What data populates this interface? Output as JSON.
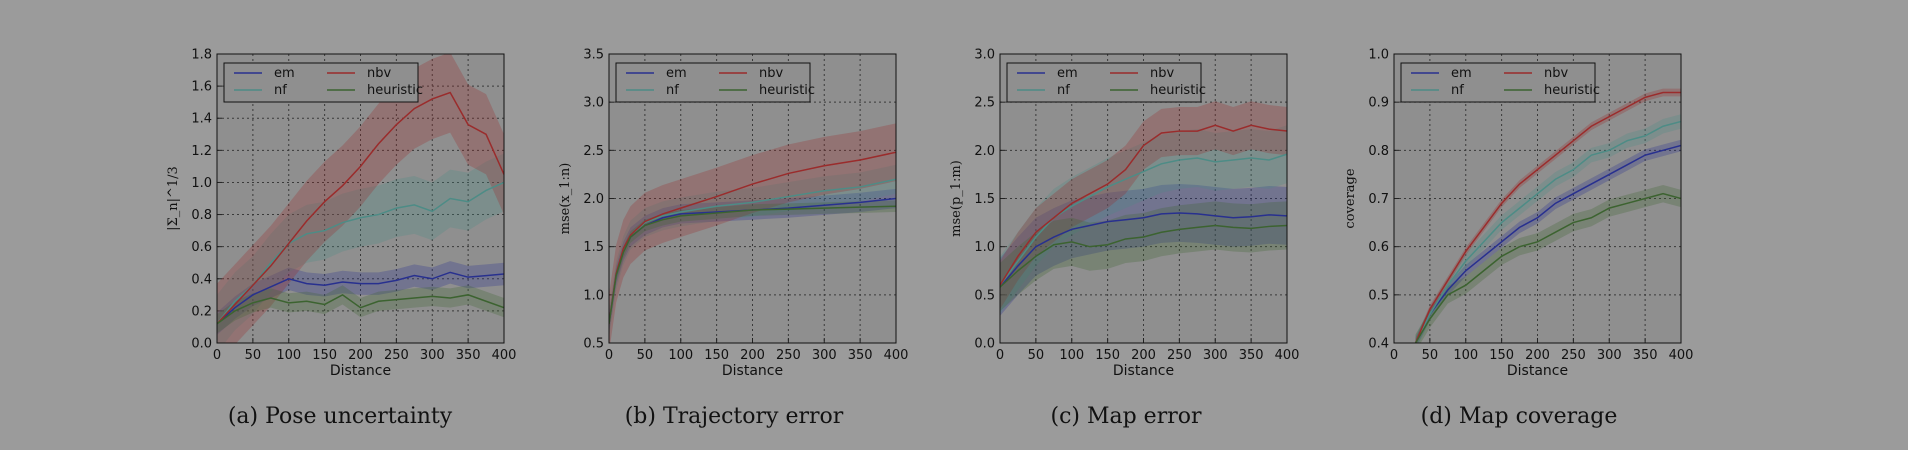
{
  "colors": {
    "em": "#28308f",
    "nf": "#4d8c86",
    "nbv": "#9a2c2c",
    "heuristic": "#3c6330",
    "axes_bg": "#8f8f8f",
    "grid": "#3a3a3a"
  },
  "chart_data": [
    {
      "type": "line",
      "caption": "(a) Pose uncertainty",
      "xlabel": "Distance",
      "ylabel": "|Σ_n|^1/3",
      "xlim": [
        0,
        400
      ],
      "ylim": [
        0,
        1.8
      ],
      "xticks": [
        "0",
        "50",
        "100",
        "150",
        "200",
        "250",
        "300",
        "350",
        "400"
      ],
      "yticks": [
        "0.0",
        "0.2",
        "0.4",
        "0.6",
        "0.8",
        "1.0",
        "1.2",
        "1.4",
        "1.6",
        "1.8"
      ],
      "legend_location": "top-left",
      "legend": [
        "em",
        "nf",
        "nbv",
        "heuristic"
      ],
      "x": [
        0,
        25,
        50,
        75,
        100,
        125,
        150,
        175,
        200,
        225,
        250,
        275,
        300,
        325,
        350,
        375,
        400
      ],
      "series": [
        {
          "name": "em",
          "values": [
            0.12,
            0.22,
            0.3,
            0.35,
            0.4,
            0.37,
            0.36,
            0.38,
            0.37,
            0.37,
            0.39,
            0.42,
            0.4,
            0.44,
            0.41,
            0.42,
            0.43
          ],
          "band": 0.07
        },
        {
          "name": "nf",
          "values": [
            0.12,
            0.26,
            0.36,
            0.5,
            0.62,
            0.68,
            0.7,
            0.75,
            0.78,
            0.8,
            0.84,
            0.86,
            0.82,
            0.9,
            0.88,
            0.95,
            1.0
          ],
          "band": 0.18
        },
        {
          "name": "nbv",
          "values": [
            0.12,
            0.24,
            0.36,
            0.48,
            0.62,
            0.76,
            0.88,
            0.98,
            1.1,
            1.24,
            1.36,
            1.46,
            1.52,
            1.56,
            1.36,
            1.3,
            1.05
          ],
          "band": 0.25
        },
        {
          "name": "heuristic",
          "values": [
            0.12,
            0.2,
            0.25,
            0.28,
            0.25,
            0.26,
            0.24,
            0.3,
            0.22,
            0.26,
            0.27,
            0.28,
            0.29,
            0.28,
            0.3,
            0.26,
            0.22
          ],
          "band": 0.06
        }
      ]
    },
    {
      "type": "line",
      "caption": "(b) Trajectory error",
      "xlabel": "Distance",
      "ylabel": "mse(x_1:n)",
      "xlim": [
        0,
        400
      ],
      "ylim": [
        0.5,
        3.5
      ],
      "xticks": [
        "0",
        "50",
        "100",
        "150",
        "200",
        "250",
        "300",
        "350",
        "400"
      ],
      "yticks": [
        "0.5",
        "1.0",
        "1.5",
        "2.0",
        "2.5",
        "3.0",
        "3.5"
      ],
      "legend_location": "top-left",
      "legend": [
        "em",
        "nf",
        "nbv",
        "heuristic"
      ],
      "x": [
        0,
        10,
        20,
        30,
        50,
        75,
        100,
        150,
        200,
        250,
        300,
        350,
        400
      ],
      "series": [
        {
          "name": "em",
          "values": [
            0.7,
            1.2,
            1.45,
            1.6,
            1.72,
            1.8,
            1.84,
            1.86,
            1.88,
            1.9,
            1.93,
            1.96,
            2.0
          ],
          "band": 0.1
        },
        {
          "name": "nf",
          "values": [
            0.7,
            1.2,
            1.46,
            1.62,
            1.75,
            1.82,
            1.86,
            1.92,
            1.96,
            2.02,
            2.08,
            2.12,
            2.2
          ],
          "band": 0.15
        },
        {
          "name": "nbv",
          "values": [
            0.7,
            1.22,
            1.48,
            1.62,
            1.76,
            1.84,
            1.9,
            2.02,
            2.15,
            2.26,
            2.34,
            2.4,
            2.48
          ],
          "band": 0.3
        },
        {
          "name": "heuristic",
          "values": [
            0.7,
            1.2,
            1.44,
            1.6,
            1.72,
            1.78,
            1.82,
            1.85,
            1.88,
            1.89,
            1.9,
            1.91,
            1.92
          ],
          "band": 0.06
        }
      ]
    },
    {
      "type": "line",
      "caption": "(c) Map error",
      "xlabel": "Distance",
      "ylabel": "mse(p_1:m)",
      "xlim": [
        0,
        400
      ],
      "ylim": [
        0.0,
        3.0
      ],
      "xticks": [
        "0",
        "50",
        "100",
        "150",
        "200",
        "250",
        "300",
        "350",
        "400"
      ],
      "yticks": [
        "0.0",
        "0.5",
        "1.0",
        "1.5",
        "2.0",
        "2.5",
        "3.0"
      ],
      "legend_location": "top-left",
      "legend": [
        "em",
        "nf",
        "nbv",
        "heuristic"
      ],
      "x": [
        0,
        25,
        50,
        75,
        100,
        125,
        150,
        175,
        200,
        225,
        250,
        275,
        300,
        325,
        350,
        375,
        400
      ],
      "series": [
        {
          "name": "em",
          "values": [
            0.58,
            0.8,
            1.0,
            1.1,
            1.18,
            1.22,
            1.26,
            1.28,
            1.3,
            1.34,
            1.35,
            1.34,
            1.32,
            1.3,
            1.31,
            1.33,
            1.32
          ],
          "band": 0.3
        },
        {
          "name": "nf",
          "values": [
            0.6,
            0.85,
            1.1,
            1.3,
            1.42,
            1.52,
            1.62,
            1.7,
            1.78,
            1.86,
            1.9,
            1.92,
            1.88,
            1.9,
            1.92,
            1.9,
            1.96
          ],
          "band": 0.3
        },
        {
          "name": "nbv",
          "values": [
            0.6,
            0.9,
            1.15,
            1.3,
            1.45,
            1.55,
            1.65,
            1.8,
            2.05,
            2.18,
            2.2,
            2.2,
            2.26,
            2.2,
            2.26,
            2.22,
            2.2
          ],
          "band": 0.25
        },
        {
          "name": "heuristic",
          "values": [
            0.58,
            0.75,
            0.9,
            1.02,
            1.05,
            1.0,
            1.02,
            1.08,
            1.1,
            1.15,
            1.18,
            1.2,
            1.22,
            1.2,
            1.19,
            1.21,
            1.22
          ],
          "band": 0.25
        }
      ]
    },
    {
      "type": "line",
      "caption": "(d) Map coverage",
      "xlabel": "Distance",
      "ylabel": "coverage",
      "xlim": [
        0,
        400
      ],
      "ylim": [
        0.4,
        1.0
      ],
      "xticks": [
        "0",
        "50",
        "100",
        "150",
        "200",
        "250",
        "300",
        "350",
        "400"
      ],
      "yticks": [
        "0.4",
        "0.5",
        "0.6",
        "0.7",
        "0.8",
        "0.9",
        "1.0"
      ],
      "legend_location": "top-left",
      "legend": [
        "em",
        "nf",
        "nbv",
        "heuristic"
      ],
      "x": [
        30,
        50,
        75,
        100,
        125,
        150,
        175,
        200,
        225,
        250,
        275,
        300,
        325,
        350,
        375,
        400
      ],
      "series": [
        {
          "name": "em",
          "values": [
            0.4,
            0.46,
            0.51,
            0.55,
            0.58,
            0.61,
            0.64,
            0.66,
            0.69,
            0.71,
            0.73,
            0.75,
            0.77,
            0.79,
            0.8,
            0.81
          ],
          "band": 0.012
        },
        {
          "name": "nf",
          "values": [
            0.4,
            0.46,
            0.52,
            0.57,
            0.61,
            0.65,
            0.68,
            0.71,
            0.74,
            0.76,
            0.79,
            0.8,
            0.82,
            0.83,
            0.85,
            0.86
          ],
          "band": 0.015
        },
        {
          "name": "nbv",
          "values": [
            0.4,
            0.47,
            0.53,
            0.59,
            0.64,
            0.69,
            0.73,
            0.76,
            0.79,
            0.82,
            0.85,
            0.87,
            0.89,
            0.91,
            0.92,
            0.92
          ],
          "band": 0.008
        },
        {
          "name": "heuristic",
          "values": [
            0.4,
            0.45,
            0.5,
            0.52,
            0.55,
            0.58,
            0.6,
            0.61,
            0.63,
            0.65,
            0.66,
            0.68,
            0.69,
            0.7,
            0.71,
            0.7
          ],
          "band": 0.018
        }
      ]
    }
  ]
}
